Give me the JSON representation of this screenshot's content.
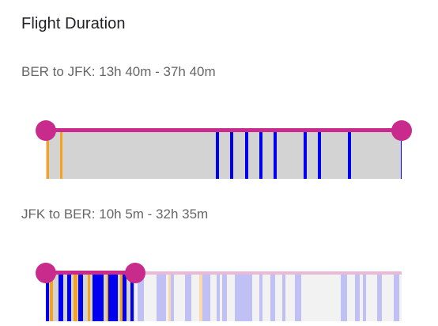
{
  "title": "Flight Duration",
  "colors": {
    "accent": "#c82b8c",
    "accent_faded": "#eab9d7",
    "in_range_bg": "#d3d3d3",
    "out_range_bg": "#f2f2f2",
    "blue": "#0000ee",
    "blue_faded": "#c0c0f5",
    "orange": "#f7a21b",
    "orange_faded": "#fbd9b0"
  },
  "outbound": {
    "label": "BER to JFK: 13h 40m - 37h 40m",
    "range_selected": [
      0,
      1
    ],
    "bars": [
      {
        "pos": 0.002,
        "w": 3,
        "color": "orange"
      },
      {
        "pos": 0.04,
        "w": 3,
        "color": "orange"
      },
      {
        "pos": 0.478,
        "w": 4,
        "color": "blue"
      },
      {
        "pos": 0.518,
        "w": 4,
        "color": "blue"
      },
      {
        "pos": 0.56,
        "w": 4,
        "color": "blue"
      },
      {
        "pos": 0.6,
        "w": 4,
        "color": "blue"
      },
      {
        "pos": 0.64,
        "w": 4,
        "color": "blue"
      },
      {
        "pos": 0.725,
        "w": 4,
        "color": "blue"
      },
      {
        "pos": 0.765,
        "w": 4,
        "color": "blue"
      },
      {
        "pos": 0.848,
        "w": 4,
        "color": "blue"
      },
      {
        "pos": 0.997,
        "w": 1,
        "color": "blue"
      }
    ]
  },
  "return": {
    "label": "JFK to BER: 10h 5m - 32h 35m",
    "range_selected": [
      0,
      0.25
    ],
    "bars": [
      {
        "pos": 0.0,
        "w": 4,
        "color": "blue"
      },
      {
        "pos": 0.012,
        "w": 4,
        "color": "orange"
      },
      {
        "pos": 0.035,
        "w": 6,
        "color": "blue"
      },
      {
        "pos": 0.06,
        "w": 5,
        "color": "blue"
      },
      {
        "pos": 0.078,
        "w": 5,
        "color": "orange"
      },
      {
        "pos": 0.092,
        "w": 6,
        "color": "blue"
      },
      {
        "pos": 0.118,
        "w": 3,
        "color": "orange"
      },
      {
        "pos": 0.13,
        "w": 14,
        "color": "blue"
      },
      {
        "pos": 0.17,
        "w": 3,
        "color": "orange"
      },
      {
        "pos": 0.176,
        "w": 12,
        "color": "blue"
      },
      {
        "pos": 0.208,
        "w": 3,
        "color": "orange"
      },
      {
        "pos": 0.215,
        "w": 5,
        "color": "blue"
      },
      {
        "pos": 0.238,
        "w": 4,
        "color": "blue"
      },
      {
        "pos": 0.258,
        "w": 8,
        "color": "blue"
      },
      {
        "pos": 0.31,
        "w": 12,
        "color": "blue"
      },
      {
        "pos": 0.345,
        "w": 4,
        "color": "orange"
      },
      {
        "pos": 0.352,
        "w": 4,
        "color": "blue"
      },
      {
        "pos": 0.39,
        "w": 8,
        "color": "blue"
      },
      {
        "pos": 0.43,
        "w": 4,
        "color": "orange"
      },
      {
        "pos": 0.44,
        "w": 10,
        "color": "blue"
      },
      {
        "pos": 0.48,
        "w": 4,
        "color": "blue"
      },
      {
        "pos": 0.495,
        "w": 6,
        "color": "blue"
      },
      {
        "pos": 0.53,
        "w": 22,
        "color": "blue"
      },
      {
        "pos": 0.6,
        "w": 4,
        "color": "blue"
      },
      {
        "pos": 0.63,
        "w": 6,
        "color": "blue"
      },
      {
        "pos": 0.665,
        "w": 4,
        "color": "blue"
      },
      {
        "pos": 0.7,
        "w": 8,
        "color": "blue"
      },
      {
        "pos": 0.828,
        "w": 8,
        "color": "blue"
      },
      {
        "pos": 0.868,
        "w": 6,
        "color": "blue"
      },
      {
        "pos": 0.89,
        "w": 4,
        "color": "blue"
      },
      {
        "pos": 0.93,
        "w": 6,
        "color": "blue"
      },
      {
        "pos": 0.978,
        "w": 7,
        "color": "blue"
      }
    ]
  }
}
